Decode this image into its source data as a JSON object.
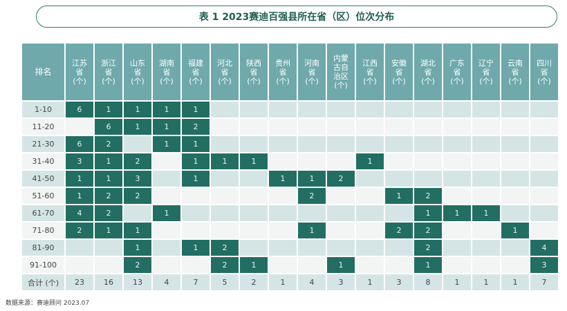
{
  "title": "表 1  2023赛迪百强县所在省（区）位次分布",
  "header": {
    "rank_label": "排名",
    "columns": [
      "江苏省(个)",
      "浙江省(个)",
      "山东省(个)",
      "湖南省(个)",
      "福建省(个)",
      "河北省(个)",
      "陕西省(个)",
      "贵州省(个)",
      "河南省(个)",
      "内蒙古自治区(个)",
      "江西省(个)",
      "安徽省(个)",
      "湖北省(个)",
      "广东省(个)",
      "辽宁省(个)",
      "云南省(个)",
      "四川省(个)"
    ],
    "columns_display": [
      [
        "江苏",
        "省",
        "(个)"
      ],
      [
        "浙江",
        "省",
        "(个)"
      ],
      [
        "山东",
        "省",
        "(个)"
      ],
      [
        "湖南",
        "省",
        "(个)"
      ],
      [
        "福建",
        "省",
        "(个)"
      ],
      [
        "河北",
        "省",
        "(个)"
      ],
      [
        "陕西",
        "省",
        "(个)"
      ],
      [
        "贵州",
        "省",
        "(个)"
      ],
      [
        "河南",
        "省",
        "(个)"
      ],
      [
        "内蒙",
        "古自",
        "治区",
        "(个)"
      ],
      [
        "江西",
        "省",
        "(个)"
      ],
      [
        "安徽",
        "省",
        "(个)"
      ],
      [
        "湖北",
        "省",
        "(个)"
      ],
      [
        "广东",
        "省",
        "(个)"
      ],
      [
        "辽宁",
        "省",
        "(个)"
      ],
      [
        "云南",
        "省",
        "(个)"
      ],
      [
        "四川",
        "省",
        "(个)"
      ]
    ]
  },
  "rows": [
    {
      "rank": "1-10",
      "values": [
        "6",
        "1",
        "1",
        "1",
        "1",
        "",
        "",
        "",
        "",
        "",
        "",
        "",
        "",
        "",
        "",
        "",
        ""
      ]
    },
    {
      "rank": "11-20",
      "values": [
        "",
        "6",
        "1",
        "1",
        "2",
        "",
        "",
        "",
        "",
        "",
        "",
        "",
        "",
        "",
        "",
        "",
        ""
      ]
    },
    {
      "rank": "21-30",
      "values": [
        "6",
        "2",
        "",
        "1",
        "1",
        "",
        "",
        "",
        "",
        "",
        "",
        "",
        "",
        "",
        "",
        "",
        ""
      ]
    },
    {
      "rank": "31-40",
      "values": [
        "3",
        "1",
        "2",
        "",
        "1",
        "1",
        "1",
        "",
        "",
        "",
        "1",
        "",
        "",
        "",
        "",
        "",
        ""
      ]
    },
    {
      "rank": "41-50",
      "values": [
        "1",
        "1",
        "3",
        "",
        "1",
        "",
        "",
        "1",
        "1",
        "2",
        "",
        "",
        "",
        "",
        "",
        "",
        ""
      ]
    },
    {
      "rank": "51-60",
      "values": [
        "1",
        "2",
        "2",
        "",
        "",
        "",
        "",
        "",
        "2",
        "",
        "",
        "1",
        "2",
        "",
        "",
        "",
        ""
      ]
    },
    {
      "rank": "61-70",
      "values": [
        "4",
        "2",
        "",
        "1",
        "",
        "",
        "",
        "",
        "",
        "",
        "",
        "",
        "1",
        "1",
        "1",
        "",
        ""
      ]
    },
    {
      "rank": "71-80",
      "values": [
        "2",
        "1",
        "1",
        "",
        "",
        "",
        "",
        "",
        "1",
        "",
        "",
        "2",
        "2",
        "",
        "",
        "1",
        ""
      ]
    },
    {
      "rank": "81-90",
      "values": [
        "",
        "",
        "1",
        "",
        "1",
        "2",
        "",
        "",
        "",
        "",
        "",
        "",
        "2",
        "",
        "",
        "",
        "4"
      ]
    },
    {
      "rank": "91-100",
      "values": [
        "",
        "",
        "2",
        "",
        "",
        "2",
        "1",
        "",
        "",
        "1",
        "",
        "",
        "1",
        "",
        "",
        "",
        "3"
      ]
    }
  ],
  "total": {
    "label": "合计 (个)",
    "values": [
      "23",
      "16",
      "13",
      "4",
      "7",
      "5",
      "2",
      "1",
      "4",
      "3",
      "1",
      "3",
      "8",
      "1",
      "1",
      "1",
      "7"
    ]
  },
  "source": "数据来源：赛迪顾问 2023.07",
  "colors": {
    "header": "#6fa9ab",
    "filled": "#236e62",
    "row_light": "#d5e5e6",
    "row_white": "#f3f5f5",
    "title_border": "#2f7a6c"
  }
}
